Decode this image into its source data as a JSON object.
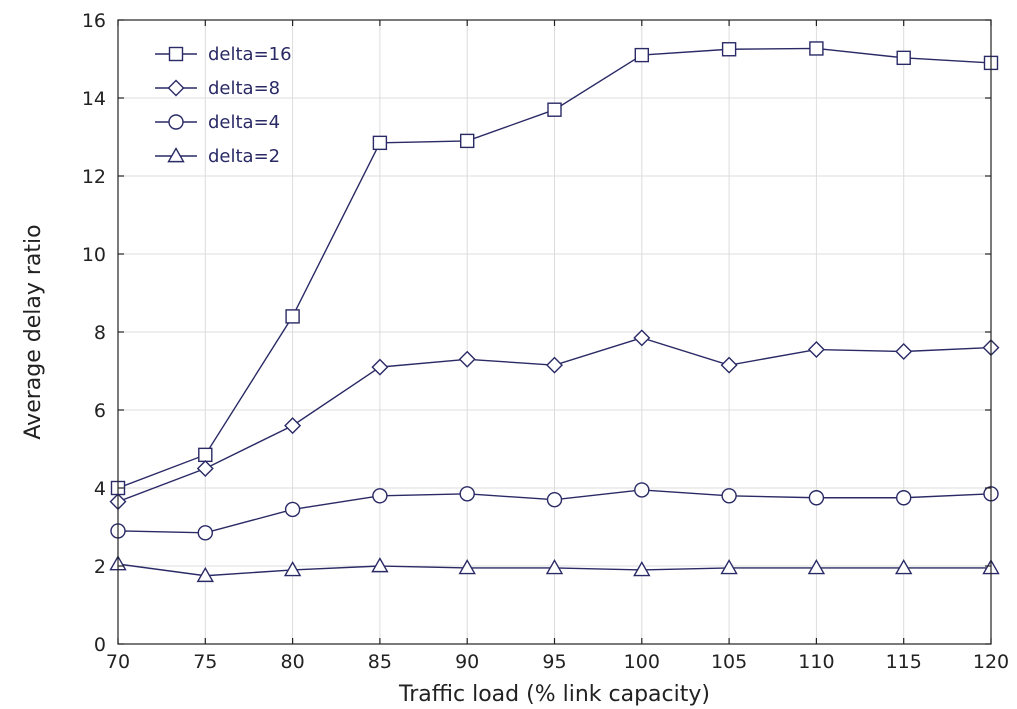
{
  "chart_data": {
    "type": "line",
    "title": "",
    "xlabel": "Traffic load (% link capacity)",
    "ylabel": "Average delay ratio",
    "x": [
      70,
      75,
      80,
      85,
      90,
      95,
      100,
      105,
      110,
      115,
      120
    ],
    "xlim": [
      70,
      120
    ],
    "ylim": [
      0,
      16
    ],
    "xticks": [
      70,
      75,
      80,
      85,
      90,
      95,
      100,
      105,
      110,
      115,
      120
    ],
    "yticks": [
      0,
      2,
      4,
      6,
      8,
      10,
      12,
      14,
      16
    ],
    "grid": true,
    "legend_position": "top-left",
    "line_color": "#2a2a66",
    "series": [
      {
        "name": "delta=16",
        "marker": "square",
        "values": [
          4.0,
          4.85,
          8.4,
          12.85,
          12.9,
          13.7,
          15.1,
          15.25,
          15.27,
          15.03,
          14.9
        ]
      },
      {
        "name": "delta=8",
        "marker": "diamond",
        "values": [
          3.65,
          4.5,
          5.6,
          7.1,
          7.3,
          7.15,
          7.85,
          7.15,
          7.55,
          7.5,
          7.6
        ]
      },
      {
        "name": "delta=4",
        "marker": "circle",
        "values": [
          2.9,
          2.85,
          3.45,
          3.8,
          3.85,
          3.7,
          3.95,
          3.8,
          3.75,
          3.75,
          3.85
        ]
      },
      {
        "name": "delta=2",
        "marker": "triangle",
        "values": [
          2.05,
          1.75,
          1.9,
          2.0,
          1.95,
          1.95,
          1.9,
          1.95,
          1.95,
          1.95,
          1.95
        ]
      }
    ]
  }
}
